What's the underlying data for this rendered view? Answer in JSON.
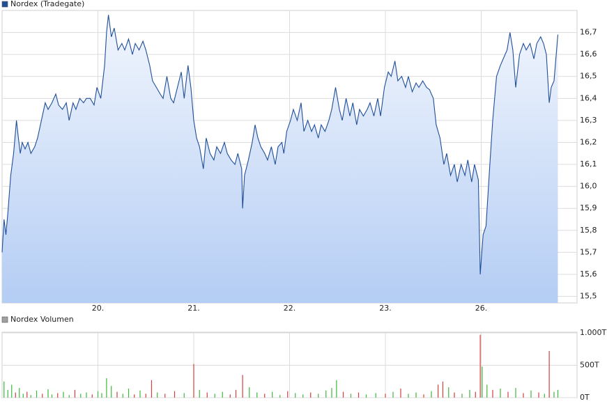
{
  "chart_data": [
    {
      "type": "line",
      "xlim": [
        -1,
        5
      ],
      "xticks": [
        {
          "value": 0,
          "label": "20."
        },
        {
          "value": 1,
          "label": "21."
        },
        {
          "value": 2,
          "label": "22."
        },
        {
          "value": 3,
          "label": "23."
        },
        {
          "value": 4,
          "label": "26."
        }
      ],
      "ylim": [
        15.47,
        16.8
      ],
      "yticks": [
        {
          "value": 15.5,
          "label": "15,5"
        },
        {
          "value": 15.6,
          "label": "15,6"
        },
        {
          "value": 15.7,
          "label": "15,7"
        },
        {
          "value": 15.8,
          "label": "15,8"
        },
        {
          "value": 15.9,
          "label": "15,9"
        },
        {
          "value": 16.0,
          "label": "16,0"
        },
        {
          "value": 16.1,
          "label": "16,1"
        },
        {
          "value": 16.2,
          "label": "16,2"
        },
        {
          "value": 16.3,
          "label": "16,3"
        },
        {
          "value": 16.4,
          "label": "16,4"
        },
        {
          "value": 16.5,
          "label": "16,5"
        },
        {
          "value": 16.6,
          "label": "16,6"
        },
        {
          "value": 16.7,
          "label": "16,7"
        }
      ],
      "grid": true,
      "x": [
        -1.0,
        -0.98,
        -0.96,
        -0.94,
        -0.91,
        -0.88,
        -0.85,
        -0.83,
        -0.81,
        -0.79,
        -0.76,
        -0.73,
        -0.7,
        -0.66,
        -0.63,
        -0.59,
        -0.55,
        -0.52,
        -0.48,
        -0.44,
        -0.41,
        -0.37,
        -0.33,
        -0.3,
        -0.26,
        -0.23,
        -0.19,
        -0.15,
        -0.12,
        -0.08,
        -0.04,
        -0.01,
        0.03,
        0.07,
        0.09,
        0.11,
        0.14,
        0.17,
        0.21,
        0.25,
        0.28,
        0.32,
        0.36,
        0.39,
        0.43,
        0.47,
        0.5,
        0.54,
        0.57,
        0.61,
        0.65,
        0.68,
        0.72,
        0.76,
        0.79,
        0.83,
        0.87,
        0.9,
        0.94,
        0.97,
        1.0,
        1.03,
        1.06,
        1.1,
        1.13,
        1.17,
        1.21,
        1.24,
        1.28,
        1.32,
        1.35,
        1.39,
        1.43,
        1.46,
        1.5,
        1.51,
        1.53,
        1.57,
        1.61,
        1.64,
        1.67,
        1.7,
        1.74,
        1.77,
        1.81,
        1.85,
        1.88,
        1.92,
        1.94,
        1.97,
        2.01,
        2.04,
        2.08,
        2.12,
        2.15,
        2.19,
        2.23,
        2.26,
        2.3,
        2.33,
        2.37,
        2.41,
        2.44,
        2.48,
        2.52,
        2.55,
        2.59,
        2.63,
        2.66,
        2.7,
        2.73,
        2.77,
        2.81,
        2.84,
        2.88,
        2.92,
        2.95,
        2.99,
        3.03,
        3.06,
        3.1,
        3.13,
        3.17,
        3.21,
        3.24,
        3.28,
        3.32,
        3.35,
        3.39,
        3.43,
        3.46,
        3.5,
        3.53,
        3.57,
        3.61,
        3.64,
        3.68,
        3.72,
        3.75,
        3.79,
        3.83,
        3.86,
        3.9,
        3.93,
        3.97,
        3.99,
        4.02,
        4.05,
        4.09,
        4.12,
        4.16,
        4.2,
        4.23,
        4.27,
        4.3,
        4.33,
        4.36,
        4.4,
        4.44,
        4.47,
        4.51,
        4.55,
        4.58,
        4.62,
        4.65,
        4.68,
        4.71,
        4.73,
        4.76,
        4.8
      ],
      "series": [
        {
          "name": "Nordex (Tradegate)",
          "color": "#1f4e9a",
          "values": [
            15.7,
            15.85,
            15.78,
            15.88,
            16.05,
            16.15,
            16.3,
            16.22,
            16.15,
            16.2,
            16.17,
            16.2,
            16.15,
            16.18,
            16.22,
            16.3,
            16.38,
            16.35,
            16.38,
            16.42,
            16.37,
            16.35,
            16.38,
            16.3,
            16.38,
            16.35,
            16.4,
            16.38,
            16.4,
            16.4,
            16.37,
            16.45,
            16.4,
            16.55,
            16.7,
            16.78,
            16.68,
            16.72,
            16.62,
            16.65,
            16.62,
            16.67,
            16.6,
            16.65,
            16.62,
            16.66,
            16.62,
            16.55,
            16.48,
            16.45,
            16.42,
            16.4,
            16.5,
            16.4,
            16.38,
            16.45,
            16.52,
            16.4,
            16.55,
            16.45,
            16.3,
            16.22,
            16.18,
            16.08,
            16.22,
            16.15,
            16.12,
            16.18,
            16.15,
            16.2,
            16.15,
            16.12,
            16.1,
            16.15,
            16.08,
            15.9,
            16.05,
            16.12,
            16.2,
            16.28,
            16.22,
            16.18,
            16.15,
            16.12,
            16.18,
            16.1,
            16.18,
            16.2,
            16.15,
            16.25,
            16.3,
            16.35,
            16.3,
            16.38,
            16.25,
            16.3,
            16.25,
            16.28,
            16.22,
            16.28,
            16.25,
            16.3,
            16.35,
            16.45,
            16.35,
            16.3,
            16.4,
            16.32,
            16.38,
            16.28,
            16.35,
            16.32,
            16.35,
            16.38,
            16.32,
            16.4,
            16.32,
            16.45,
            16.52,
            16.5,
            16.57,
            16.48,
            16.5,
            16.45,
            16.5,
            16.43,
            16.47,
            16.45,
            16.48,
            16.45,
            16.44,
            16.4,
            16.28,
            16.22,
            16.1,
            16.15,
            16.05,
            16.1,
            16.02,
            16.1,
            16.05,
            16.12,
            16.02,
            16.1,
            16.03,
            15.6,
            15.78,
            15.82,
            16.1,
            16.3,
            16.5,
            16.55,
            16.58,
            16.62,
            16.7,
            16.62,
            16.45,
            16.6,
            16.65,
            16.62,
            16.65,
            16.58,
            16.65,
            16.68,
            16.65,
            16.6,
            16.38,
            16.45,
            16.48,
            16.69
          ]
        }
      ]
    },
    {
      "type": "bar",
      "xlim": [
        -1,
        5
      ],
      "ylim": [
        0,
        1000
      ],
      "yticks": [
        {
          "value": 0,
          "label": "0T"
        },
        {
          "value": 500,
          "label": "500T"
        },
        {
          "value": 1000,
          "label": "1.000T"
        }
      ],
      "grid": true,
      "x": [
        -0.98,
        -0.94,
        -0.9,
        -0.86,
        -0.82,
        -0.78,
        -0.74,
        -0.7,
        -0.64,
        -0.58,
        -0.52,
        -0.48,
        -0.42,
        -0.36,
        -0.3,
        -0.24,
        -0.18,
        -0.12,
        -0.06,
        0.0,
        0.04,
        0.09,
        0.14,
        0.2,
        0.26,
        0.32,
        0.38,
        0.44,
        0.5,
        0.56,
        0.62,
        0.7,
        0.8,
        0.9,
        1.0,
        1.06,
        1.14,
        1.22,
        1.3,
        1.38,
        1.44,
        1.51,
        1.58,
        1.66,
        1.74,
        1.82,
        1.9,
        1.98,
        2.06,
        2.14,
        2.22,
        2.3,
        2.38,
        2.44,
        2.49,
        2.56,
        2.64,
        2.72,
        2.8,
        2.9,
        3.0,
        3.08,
        3.16,
        3.24,
        3.32,
        3.4,
        3.48,
        3.55,
        3.6,
        3.66,
        3.72,
        3.8,
        3.88,
        3.94,
        3.99,
        4.01,
        4.06,
        4.12,
        4.2,
        4.28,
        4.36,
        4.44,
        4.52,
        4.6,
        4.66,
        4.71,
        4.76,
        4.8
      ],
      "series": [
        {
          "name": "Nordex Volumen",
          "color": "#a0a0a0",
          "values": [
            250,
            120,
            200,
            80,
            150,
            60,
            90,
            40,
            110,
            60,
            130,
            50,
            70,
            90,
            40,
            120,
            60,
            80,
            50,
            100,
            70,
            300,
            180,
            90,
            60,
            140,
            50,
            110,
            60,
            270,
            80,
            60,
            100,
            70,
            520,
            120,
            80,
            60,
            90,
            50,
            120,
            350,
            160,
            80,
            60,
            90,
            40,
            100,
            70,
            50,
            80,
            60,
            110,
            150,
            270,
            90,
            60,
            80,
            50,
            70,
            60,
            90,
            140,
            60,
            80,
            50,
            100,
            200,
            250,
            160,
            80,
            60,
            120,
            90,
            970,
            480,
            200,
            120,
            140,
            90,
            150,
            70,
            110,
            80,
            60,
            720,
            90,
            120
          ],
          "bar_colors": [
            "#3cb83c",
            "#3cb83c",
            "#3cb83c",
            "#d24040",
            "#3cb83c",
            "#3cb83c",
            "#d24040",
            "#3cb83c",
            "#3cb83c",
            "#d24040",
            "#3cb83c",
            "#3cb83c",
            "#d24040",
            "#3cb83c",
            "#3cb83c",
            "#d24040",
            "#3cb83c",
            "#3cb83c",
            "#d24040",
            "#3cb83c",
            "#3cb83c",
            "#3cb83c",
            "#3cb83c",
            "#d24040",
            "#3cb83c",
            "#3cb83c",
            "#d24040",
            "#3cb83c",
            "#d24040",
            "#d24040",
            "#3cb83c",
            "#d24040",
            "#d24040",
            "#3cb83c",
            "#d24040",
            "#3cb83c",
            "#d24040",
            "#3cb83c",
            "#3cb83c",
            "#d24040",
            "#d24040",
            "#d24040",
            "#3cb83c",
            "#3cb83c",
            "#d24040",
            "#3cb83c",
            "#3cb83c",
            "#d24040",
            "#3cb83c",
            "#3cb83c",
            "#d24040",
            "#3cb83c",
            "#3cb83c",
            "#3cb83c",
            "#3cb83c",
            "#d24040",
            "#3cb83c",
            "#d24040",
            "#3cb83c",
            "#3cb83c",
            "#d24040",
            "#3cb83c",
            "#d24040",
            "#3cb83c",
            "#3cb83c",
            "#d24040",
            "#3cb83c",
            "#d24040",
            "#d24040",
            "#3cb83c",
            "#d24040",
            "#3cb83c",
            "#3cb83c",
            "#d24040",
            "#d24040",
            "#3cb83c",
            "#3cb83c",
            "#d24040",
            "#3cb83c",
            "#d24040",
            "#3cb83c",
            "#d24040",
            "#3cb83c",
            "#d24040",
            "#3cb83c",
            "#d24040",
            "#3cb83c",
            "#3cb83c"
          ]
        }
      ]
    }
  ]
}
